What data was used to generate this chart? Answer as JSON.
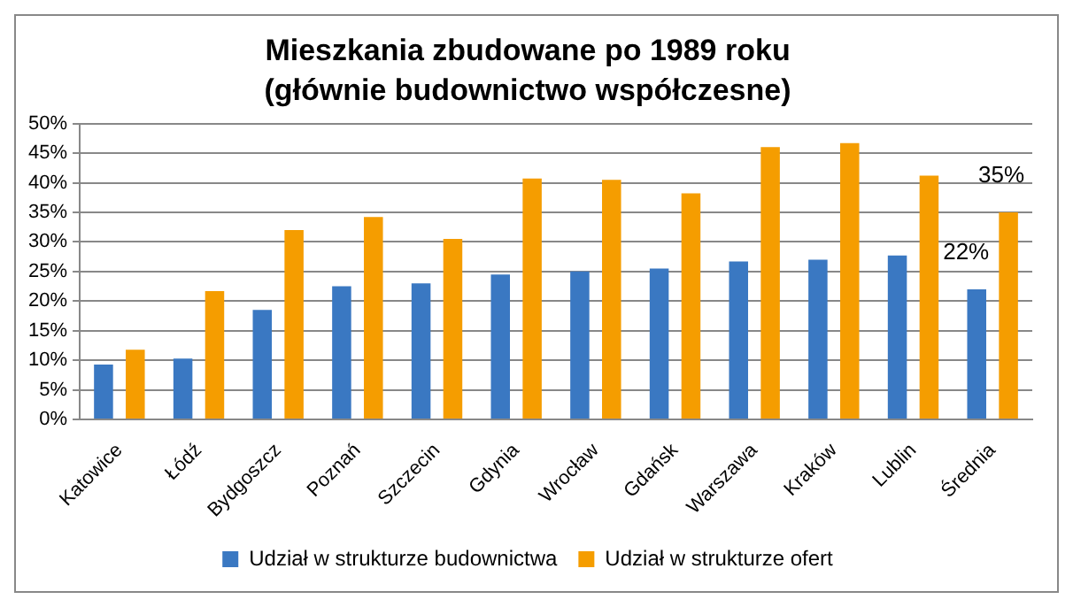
{
  "chart_data": {
    "type": "bar",
    "title": "Mieszkania zbudowane po 1989 roku",
    "subtitle": "(głównie budownictwo współczesne)",
    "categories": [
      "Katowice",
      "Łódź",
      "Bydgoszcz",
      "Poznań",
      "Szczecin",
      "Gdynia",
      "Wrocław",
      "Gdańsk",
      "Warszawa",
      "Kraków",
      "Lublin",
      "Średnia"
    ],
    "series": [
      {
        "name": "Udział w strukturze budownictwa",
        "color": "#3a78c2",
        "values": [
          9.3,
          10.3,
          18.5,
          22.5,
          23,
          24.5,
          25,
          25.5,
          26.7,
          27,
          27.7,
          22
        ],
        "value_labels": [
          null,
          null,
          null,
          null,
          null,
          null,
          null,
          null,
          null,
          null,
          null,
          "22%"
        ]
      },
      {
        "name": "Udział w strukturze ofert",
        "color": "#f59d00",
        "values": [
          11.8,
          21.7,
          32,
          34.2,
          30.5,
          40.7,
          40.5,
          38.2,
          46,
          46.7,
          41.2,
          35
        ],
        "value_labels": [
          null,
          null,
          null,
          null,
          null,
          null,
          null,
          null,
          null,
          null,
          null,
          "35%"
        ]
      }
    ],
    "ylim": [
      0,
      50
    ],
    "yticks": [
      {
        "value": 0,
        "label": "0%"
      },
      {
        "value": 5,
        "label": "5%"
      },
      {
        "value": 10,
        "label": "10%"
      },
      {
        "value": 15,
        "label": "15%"
      },
      {
        "value": 20,
        "label": "20%"
      },
      {
        "value": 25,
        "label": "25%"
      },
      {
        "value": 30,
        "label": "30%"
      },
      {
        "value": 35,
        "label": "35%"
      },
      {
        "value": 40,
        "label": "40%"
      },
      {
        "value": 45,
        "label": "45%"
      },
      {
        "value": 50,
        "label": "50%"
      }
    ],
    "grid": "y",
    "legend": "bottom"
  }
}
